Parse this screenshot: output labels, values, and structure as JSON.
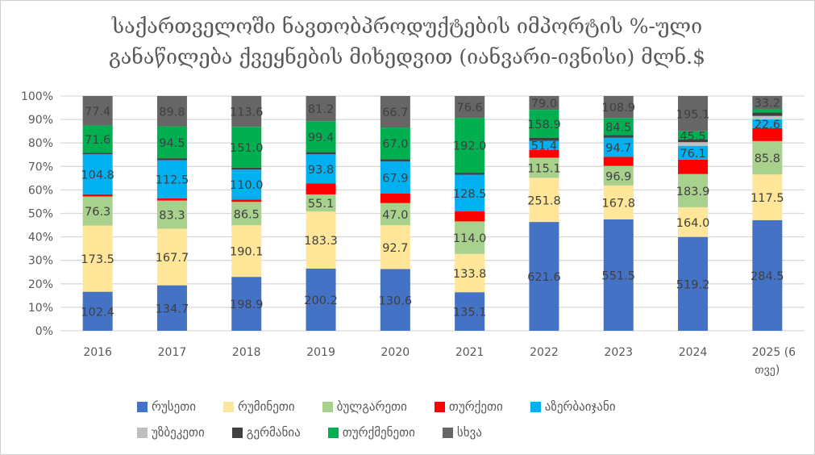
{
  "chart_data": {
    "type": "bar",
    "stacked": "percent",
    "title": "საქართველოში ნავთობპროდუქტების იმპორტის %-ული განაწილება ქვეყნების მიხედვით (იანვარი-ივნისი) მლნ.$",
    "title_lines": [
      "საქართველოში ნავთობპროდუქტების იმპორტის %-ული",
      "განაწილება ქვეყნების მიხედვით (იანვარი-ივნისი) მლნ.$"
    ],
    "xlabel": "",
    "ylabel": "",
    "ylim": [
      0,
      100
    ],
    "yticks": [
      "0%",
      "10%",
      "20%",
      "30%",
      "40%",
      "50%",
      "60%",
      "70%",
      "80%",
      "90%",
      "100%"
    ],
    "categories": [
      "2016",
      "2017",
      "2018",
      "2019",
      "2020",
      "2021",
      "2022",
      "2023",
      "2024",
      "2025 (6 თვე)"
    ],
    "category_lines": [
      [
        "2016"
      ],
      [
        "2017"
      ],
      [
        "2018"
      ],
      [
        "2019"
      ],
      [
        "2020"
      ],
      [
        "2021"
      ],
      [
        "2022"
      ],
      [
        "2023"
      ],
      [
        "2024"
      ],
      [
        "2025 (6",
        "თვე)"
      ]
    ],
    "grid": true,
    "legend_position": "bottom",
    "series": [
      {
        "name": "რუსეთი",
        "color": "#4472C4",
        "values": [
          102.4,
          134.7,
          198.9,
          200.2,
          130.6,
          135.1,
          621.6,
          551.5,
          519.2,
          284.5
        ],
        "labeled": true
      },
      {
        "name": "რუმინეთი",
        "color": "#FFE699",
        "values": [
          173.5,
          167.7,
          190.1,
          183.3,
          92.7,
          133.8,
          251.8,
          167.8,
          164.0,
          117.5
        ],
        "labeled": true
      },
      {
        "name": "ბულგარეთი",
        "color": "#A9D18E",
        "values": [
          76.3,
          83.3,
          86.5,
          55.1,
          47.0,
          114.0,
          115.1,
          96.9,
          183.9,
          85.8
        ],
        "labeled": true
      },
      {
        "name": "თურქეთი",
        "color": "#FF0000",
        "values": [
          6,
          7,
          9,
          35,
          20,
          35,
          45,
          45,
          80,
          33
        ],
        "labeled": false
      },
      {
        "name": "აზერბაიჯანი",
        "color": "#00B0F0",
        "values": [
          104.8,
          112.5,
          110.0,
          93.8,
          67.9,
          128.5,
          51.4,
          94.7,
          76.1,
          22.6
        ],
        "labeled": true
      },
      {
        "name": "უზბეკეთი",
        "color": "#BFBFBF",
        "values": [
          0,
          0,
          0,
          0,
          0,
          0,
          0,
          0,
          20,
          9
        ],
        "labeled": false
      },
      {
        "name": "გერმანია",
        "color": "#404040",
        "values": [
          4,
          6,
          7,
          7,
          5,
          7,
          18,
          13,
          15,
          9
        ],
        "labeled": false
      },
      {
        "name": "თურქმენეთი",
        "color": "#00B050",
        "values": [
          71.6,
          94.5,
          151.0,
          99.4,
          67.0,
          192.0,
          158.9,
          84.5,
          45.5,
          9
        ],
        "labeled": true,
        "unlabeled_index": [
          9
        ]
      },
      {
        "name": "სხვა",
        "color": "#666666",
        "values": [
          77.4,
          89.8,
          113.6,
          81.2,
          66.7,
          76.6,
          79.0,
          108.9,
          195.1,
          33.2
        ],
        "labeled": true
      }
    ]
  }
}
